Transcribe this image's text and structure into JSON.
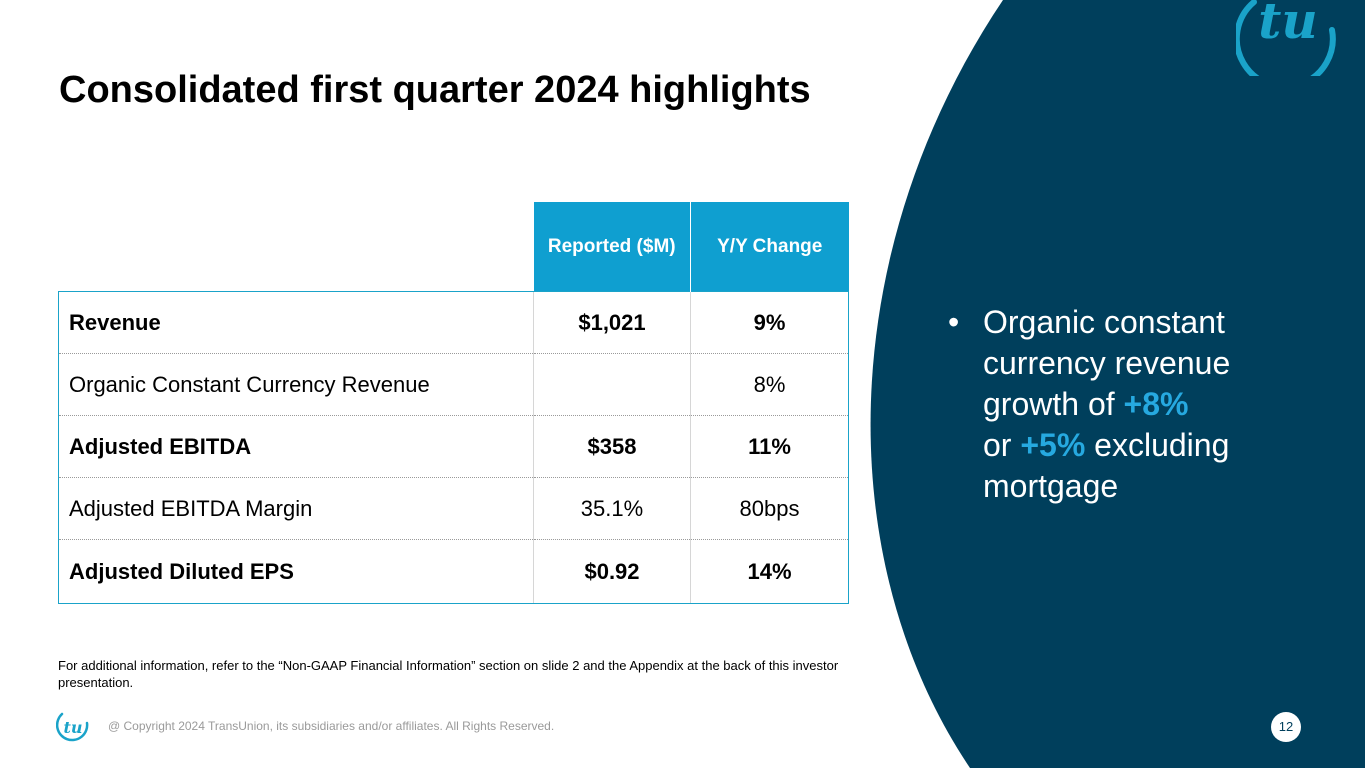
{
  "colors": {
    "panel": "#003f5c",
    "accent": "#0f9fd0",
    "highlight": "#26a9e0"
  },
  "slide": {
    "title": "Consolidated first quarter 2024 highlights",
    "table": {
      "headers": [
        "Reported ($M)",
        "Y/Y Change"
      ],
      "rows": [
        {
          "label": "Revenue",
          "reported": "$1,021",
          "change": "9%"
        },
        {
          "label": "Organic Constant Currency Revenue",
          "reported": "",
          "change": "8%"
        },
        {
          "label": "Adjusted EBITDA",
          "reported": "$358",
          "change": "11%"
        },
        {
          "label": "Adjusted EBITDA Margin",
          "reported": "35.1%",
          "change": "80bps"
        },
        {
          "label": "Adjusted Diluted EPS",
          "reported": "$0.92",
          "change": "14%"
        }
      ]
    },
    "bullet": {
      "marker": "•",
      "part1": "Organic constant currency revenue growth of ",
      "hl1": "+8%",
      "part2": "or ",
      "hl2": "+5%",
      "part3": " excluding mortgage"
    },
    "footnote": "For additional information, refer to the “Non-GAAP Financial Information” section on slide 2 and the Appendix at the back of this investor presentation.",
    "copyright": "@ Copyright 2024 TransUnion, its subsidiaries and/or affiliates.  All Rights Reserved.",
    "page_number": "12",
    "logo_text": "tu"
  }
}
